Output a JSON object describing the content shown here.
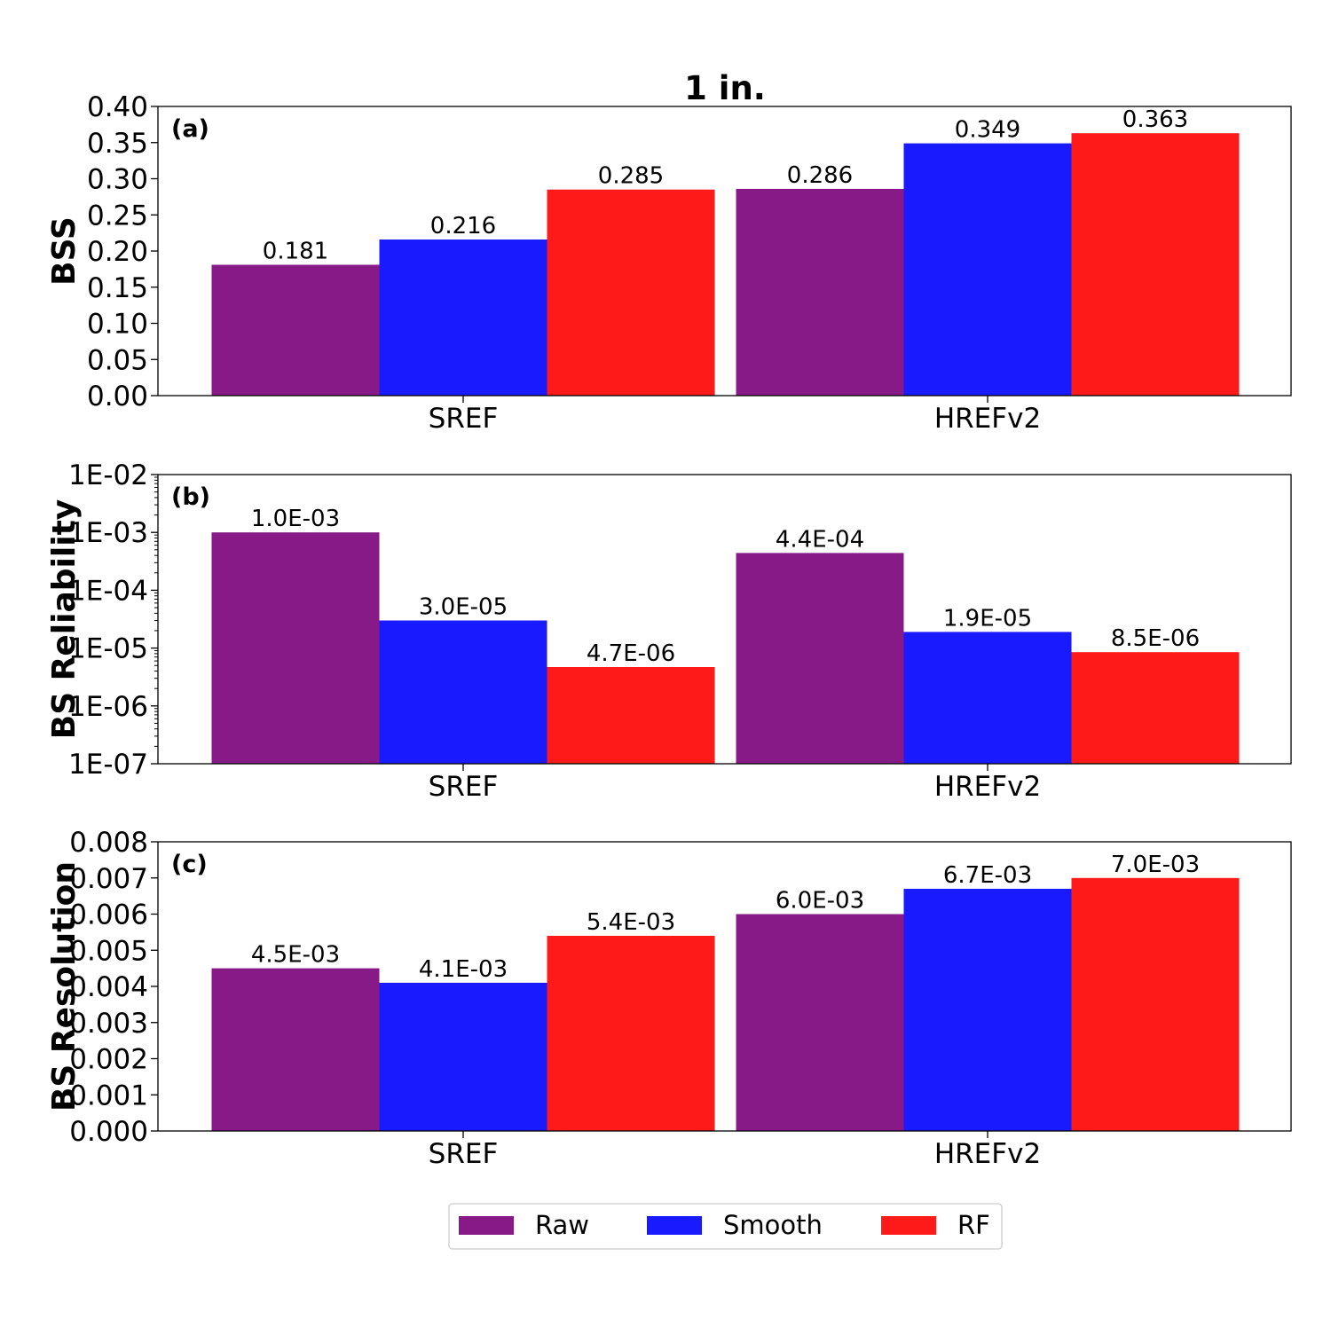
{
  "chart_data": {
    "title": "1 in.",
    "categories": [
      "SREF",
      "HREFv2"
    ],
    "legend": {
      "placement": "bottom-center",
      "entries": [
        {
          "name": "Raw",
          "color": "#881a88"
        },
        {
          "name": "Smooth",
          "color": "#1a1aff"
        },
        {
          "name": "RF",
          "color": "#ff1a1a"
        }
      ]
    },
    "panels": [
      {
        "label": "(a)",
        "type": "bar",
        "ylabel": "BSS",
        "scale": "linear",
        "ylim": [
          0,
          0.4
        ],
        "yticks": [
          0,
          0.05,
          0.1,
          0.15,
          0.2,
          0.25,
          0.3,
          0.35,
          0.4
        ],
        "ytick_labels": [
          "0.00",
          "0.05",
          "0.10",
          "0.15",
          "0.20",
          "0.25",
          "0.30",
          "0.35",
          "0.40"
        ],
        "series": [
          {
            "name": "Raw",
            "values": [
              0.181,
              0.286
            ],
            "labels": [
              "0.181",
              "0.286"
            ]
          },
          {
            "name": "Smooth",
            "values": [
              0.216,
              0.349
            ],
            "labels": [
              "0.216",
              "0.349"
            ]
          },
          {
            "name": "RF",
            "values": [
              0.285,
              0.363
            ],
            "labels": [
              "0.285",
              "0.363"
            ]
          }
        ]
      },
      {
        "label": "(b)",
        "type": "bar",
        "ylabel": "BS Reliability",
        "scale": "log",
        "ylim": [
          1e-07,
          0.01
        ],
        "yticks": [
          1e-07,
          1e-06,
          1e-05,
          0.0001,
          0.001,
          0.01
        ],
        "ytick_labels": [
          "1E-07",
          "1E-06",
          "1E-05",
          "1E-04",
          "1E-03",
          "1E-02"
        ],
        "series": [
          {
            "name": "Raw",
            "values": [
              0.001,
              0.00044
            ],
            "labels": [
              "1.0E-03",
              "4.4E-04"
            ]
          },
          {
            "name": "Smooth",
            "values": [
              3e-05,
              1.9e-05
            ],
            "labels": [
              "3.0E-05",
              "1.9E-05"
            ]
          },
          {
            "name": "RF",
            "values": [
              4.7e-06,
              8.5e-06
            ],
            "labels": [
              "4.7E-06",
              "8.5E-06"
            ]
          }
        ]
      },
      {
        "label": "(c)",
        "type": "bar",
        "ylabel": "BS Resolution",
        "scale": "linear",
        "ylim": [
          0,
          0.008
        ],
        "yticks": [
          0,
          0.001,
          0.002,
          0.003,
          0.004,
          0.005,
          0.006,
          0.007,
          0.008
        ],
        "ytick_labels": [
          "0.000",
          "0.001",
          "0.002",
          "0.003",
          "0.004",
          "0.005",
          "0.006",
          "0.007",
          "0.008"
        ],
        "series": [
          {
            "name": "Raw",
            "values": [
              0.0045,
              0.006
            ],
            "labels": [
              "4.5E-03",
              "6.0E-03"
            ]
          },
          {
            "name": "Smooth",
            "values": [
              0.0041,
              0.0067
            ],
            "labels": [
              "4.1E-03",
              "6.7E-03"
            ]
          },
          {
            "name": "RF",
            "values": [
              0.0054,
              0.007
            ],
            "labels": [
              "5.4E-03",
              "7.0E-03"
            ]
          }
        ]
      }
    ]
  }
}
